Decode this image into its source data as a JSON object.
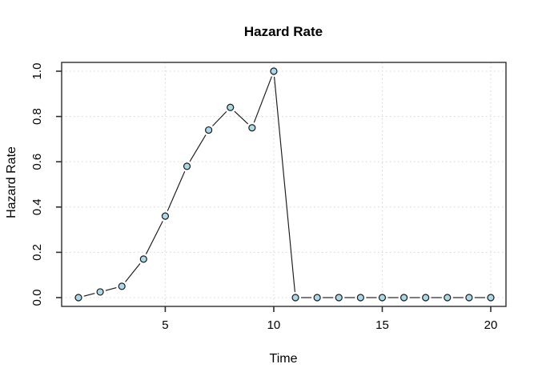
{
  "figure": {
    "kind": "R base graphics scatter-line plot",
    "background": "#FFFFFF"
  },
  "chart_data": {
    "type": "line",
    "style": "points-and-lines-with-gaps",
    "title": "Hazard Rate",
    "xlabel": "Time",
    "ylabel": "Hazard Rate",
    "x": [
      1,
      2,
      3,
      4,
      5,
      6,
      7,
      8,
      9,
      10,
      11,
      12,
      13,
      14,
      15,
      16,
      17,
      18,
      19,
      20
    ],
    "y": [
      0.0,
      0.025,
      0.05,
      0.17,
      0.36,
      0.58,
      0.74,
      0.84,
      0.75,
      1.0,
      0.0,
      0.0,
      0.0,
      0.0,
      0.0,
      0.0,
      0.0,
      0.0,
      0.0,
      0.0
    ],
    "xlim": [
      1,
      20
    ],
    "ylim": [
      0.0,
      1.0
    ],
    "xticks": [
      5,
      10,
      15,
      20
    ],
    "xtick_labels": [
      "5",
      "10",
      "15",
      "20"
    ],
    "ytick_values": [
      0.0,
      0.2,
      0.4,
      0.6,
      0.8,
      1.0
    ],
    "ytick_labels": [
      "0.0",
      "0.2",
      "0.4",
      "0.6",
      "0.8",
      "1.0"
    ],
    "grid": true,
    "grid_style": "dotted",
    "legend": "none",
    "colors": {
      "point_fill": "#ADD8E6",
      "point_stroke": "#1a1a1a",
      "line": "#1a1a1a",
      "grid": "#D8D8D8",
      "box": "#2e2e2e",
      "tick": "#2e2e2e",
      "text": "#000000"
    }
  }
}
